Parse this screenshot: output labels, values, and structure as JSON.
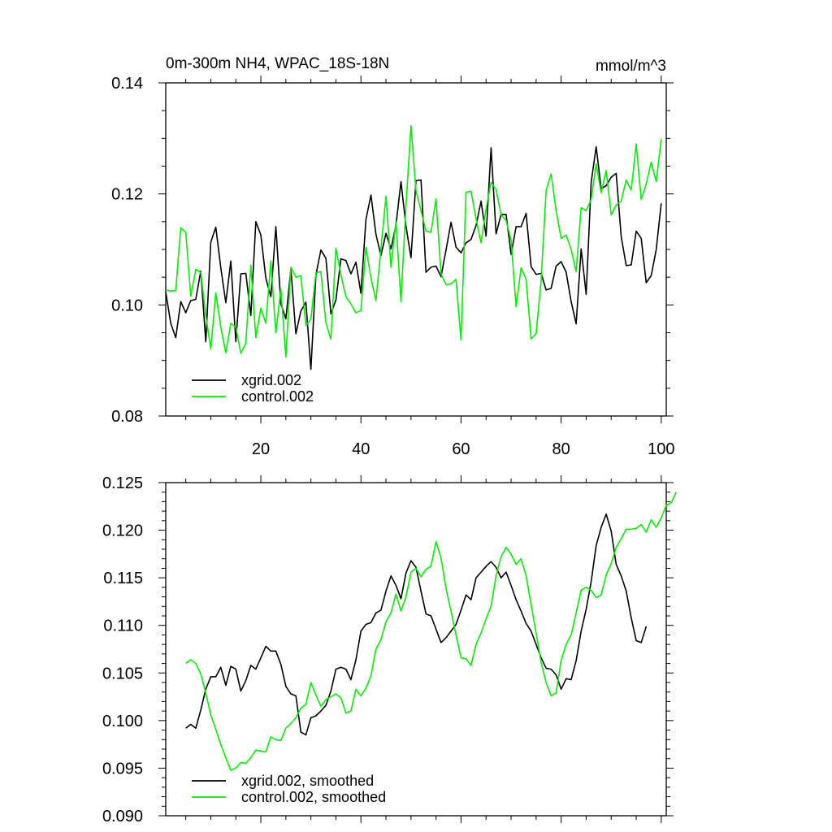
{
  "chart_data": [
    {
      "type": "line",
      "title": "0m-300m NH4, WPAC_18S-18N",
      "units": "mmol/m^3",
      "xlim": [
        1,
        101
      ],
      "ylim": [
        0.08,
        0.14
      ],
      "x_ticks": [
        20,
        40,
        60,
        80,
        100
      ],
      "x_tick_labels": [
        "20",
        "40",
        "60",
        "80",
        "100"
      ],
      "y_ticks": [
        0.08,
        0.1,
        0.12,
        0.14
      ],
      "y_tick_labels": [
        "0.08",
        "0.10",
        "0.12",
        "0.14"
      ],
      "legend_position": "lower-left",
      "series": [
        {
          "name": "xgrid.002",
          "color": "#000000",
          "x_start": 1,
          "values": [
            0.1023,
            0.0967,
            0.0941,
            0.1006,
            0.0986,
            0.1008,
            0.101,
            0.1061,
            0.0934,
            0.1113,
            0.114,
            0.1067,
            0.1004,
            0.1079,
            0.0934,
            0.1056,
            0.1057,
            0.0981,
            0.115,
            0.1126,
            0.1048,
            0.1015,
            0.1141,
            0.1002,
            0.0975,
            0.1065,
            0.0948,
            0.0989,
            0.1005,
            0.0884,
            0.1054,
            0.1099,
            0.1084,
            0.0984,
            0.1009,
            0.1083,
            0.108,
            0.1056,
            0.1077,
            0.1021,
            0.1154,
            0.1198,
            0.1127,
            0.1089,
            0.1129,
            0.1101,
            0.1144,
            0.1222,
            0.1142,
            0.1085,
            0.1224,
            0.1225,
            0.1059,
            0.1068,
            0.107,
            0.1051,
            0.1099,
            0.1149,
            0.1104,
            0.1094,
            0.1112,
            0.1118,
            0.1143,
            0.1187,
            0.1124,
            0.1283,
            0.1128,
            0.1163,
            0.1163,
            0.1091,
            0.1141,
            0.1141,
            0.1165,
            0.1069,
            0.1055,
            0.1057,
            0.1027,
            0.103,
            0.107,
            0.1078,
            0.1059,
            0.1006,
            0.0966,
            0.1101,
            0.1019,
            0.1221,
            0.1285,
            0.1209,
            0.1215,
            0.123,
            0.1237,
            0.1123,
            0.1071,
            0.1072,
            0.1133,
            0.112,
            0.104,
            0.1053,
            0.11,
            0.1183
          ]
        },
        {
          "name": "control.002",
          "color": "#00ee00",
          "x_start": 1,
          "values": [
            0.1027,
            0.1025,
            0.1026,
            0.1139,
            0.1131,
            0.1016,
            0.1064,
            0.1059,
            0.0981,
            0.0921,
            0.1022,
            0.096,
            0.0914,
            0.0967,
            0.096,
            0.0913,
            0.0931,
            0.1072,
            0.0941,
            0.0994,
            0.0967,
            0.1079,
            0.095,
            0.1029,
            0.0906,
            0.1068,
            0.105,
            0.1053,
            0.0963,
            0.0974,
            0.1058,
            0.106,
            0.0968,
            0.0938,
            0.1102,
            0.1054,
            0.1015,
            0.1002,
            0.0986,
            0.099,
            0.1104,
            0.1049,
            0.1008,
            0.1101,
            0.1196,
            0.1068,
            0.1151,
            0.1006,
            0.1179,
            0.1323,
            0.1206,
            0.117,
            0.1133,
            0.1131,
            0.1191,
            0.1056,
            0.1037,
            0.1038,
            0.1046,
            0.0937,
            0.1203,
            0.1205,
            0.1155,
            0.1112,
            0.1173,
            0.1221,
            0.1208,
            0.1163,
            0.1152,
            0.1117,
            0.0997,
            0.1067,
            0.1046,
            0.0939,
            0.0948,
            0.1043,
            0.1206,
            0.1236,
            0.117,
            0.112,
            0.1126,
            0.11,
            0.106,
            0.1175,
            0.117,
            0.119,
            0.1254,
            0.1202,
            0.1242,
            0.1162,
            0.118,
            0.1187,
            0.1225,
            0.1207,
            0.129,
            0.119,
            0.1218,
            0.1257,
            0.1222,
            0.1299
          ]
        }
      ]
    },
    {
      "type": "line",
      "xlim": [
        1,
        101
      ],
      "ylim": [
        0.09,
        0.125
      ],
      "x_ticks": [
        20,
        40,
        60,
        80,
        100
      ],
      "y_ticks": [
        0.09,
        0.095,
        0.1,
        0.105,
        0.11,
        0.115,
        0.12,
        0.125
      ],
      "y_tick_labels": [
        "0.090",
        "0.095",
        "0.100",
        "0.105",
        "0.110",
        "0.115",
        "0.120",
        "0.125"
      ],
      "legend_position": "lower-left",
      "series": [
        {
          "name": "xgrid.002, smoothed",
          "color": "#000000",
          "x_start": 5,
          "values": [
            0.0992,
            0.0996,
            0.0992,
            0.1011,
            0.1033,
            0.1046,
            0.1046,
            0.1056,
            0.1037,
            0.1057,
            0.1054,
            0.1031,
            0.1042,
            0.1058,
            0.1054,
            0.1066,
            0.1078,
            0.1073,
            0.1073,
            0.1059,
            0.1036,
            0.1028,
            0.1026,
            0.0988,
            0.0985,
            0.1003,
            0.1005,
            0.101,
            0.1016,
            0.1031,
            0.1054,
            0.1056,
            0.1054,
            0.1043,
            0.1064,
            0.1094,
            0.1101,
            0.1103,
            0.1113,
            0.1116,
            0.1136,
            0.1152,
            0.1142,
            0.1128,
            0.1155,
            0.1168,
            0.1161,
            0.1136,
            0.1112,
            0.111,
            0.1096,
            0.1082,
            0.1087,
            0.1094,
            0.1101,
            0.1116,
            0.1132,
            0.1127,
            0.115,
            0.1156,
            0.1162,
            0.1167,
            0.1161,
            0.115,
            0.1156,
            0.1142,
            0.1127,
            0.1115,
            0.1102,
            0.1094,
            0.108,
            0.1066,
            0.1055,
            0.1054,
            0.1048,
            0.1033,
            0.1044,
            0.1043,
            0.1063,
            0.1094,
            0.1117,
            0.1146,
            0.1184,
            0.1203,
            0.1217,
            0.1199,
            0.1164,
            0.1152,
            0.1136,
            0.1108,
            0.1084,
            0.1082,
            0.1099
          ]
        },
        {
          "name": "control.002, smoothed",
          "color": "#00ee00",
          "x_start": 5,
          "values": [
            0.106,
            0.1064,
            0.106,
            0.1049,
            0.1029,
            0.1006,
            0.0991,
            0.0975,
            0.0961,
            0.0948,
            0.095,
            0.0956,
            0.0955,
            0.0961,
            0.0969,
            0.0968,
            0.0967,
            0.0983,
            0.098,
            0.0979,
            0.0992,
            0.0997,
            0.1003,
            0.1013,
            0.1017,
            0.104,
            0.1027,
            0.1015,
            0.1022,
            0.1025,
            0.1028,
            0.1024,
            0.1008,
            0.101,
            0.1033,
            0.1026,
            0.1034,
            0.1047,
            0.1075,
            0.1085,
            0.1104,
            0.1113,
            0.1133,
            0.1115,
            0.113,
            0.1156,
            0.116,
            0.1151,
            0.1159,
            0.1162,
            0.1188,
            0.1171,
            0.1139,
            0.1115,
            0.109,
            0.1066,
            0.1065,
            0.1058,
            0.108,
            0.1092,
            0.1107,
            0.112,
            0.1152,
            0.1172,
            0.1182,
            0.1175,
            0.1164,
            0.117,
            0.1152,
            0.1122,
            0.1092,
            0.1061,
            0.104,
            0.1026,
            0.1029,
            0.1063,
            0.108,
            0.109,
            0.1113,
            0.1137,
            0.114,
            0.1137,
            0.1129,
            0.1132,
            0.1153,
            0.1165,
            0.1182,
            0.1191,
            0.1201,
            0.1201,
            0.1202,
            0.1206,
            0.1198,
            0.1211,
            0.1203,
            0.1213,
            0.1226,
            0.1229,
            0.124
          ]
        }
      ]
    }
  ]
}
